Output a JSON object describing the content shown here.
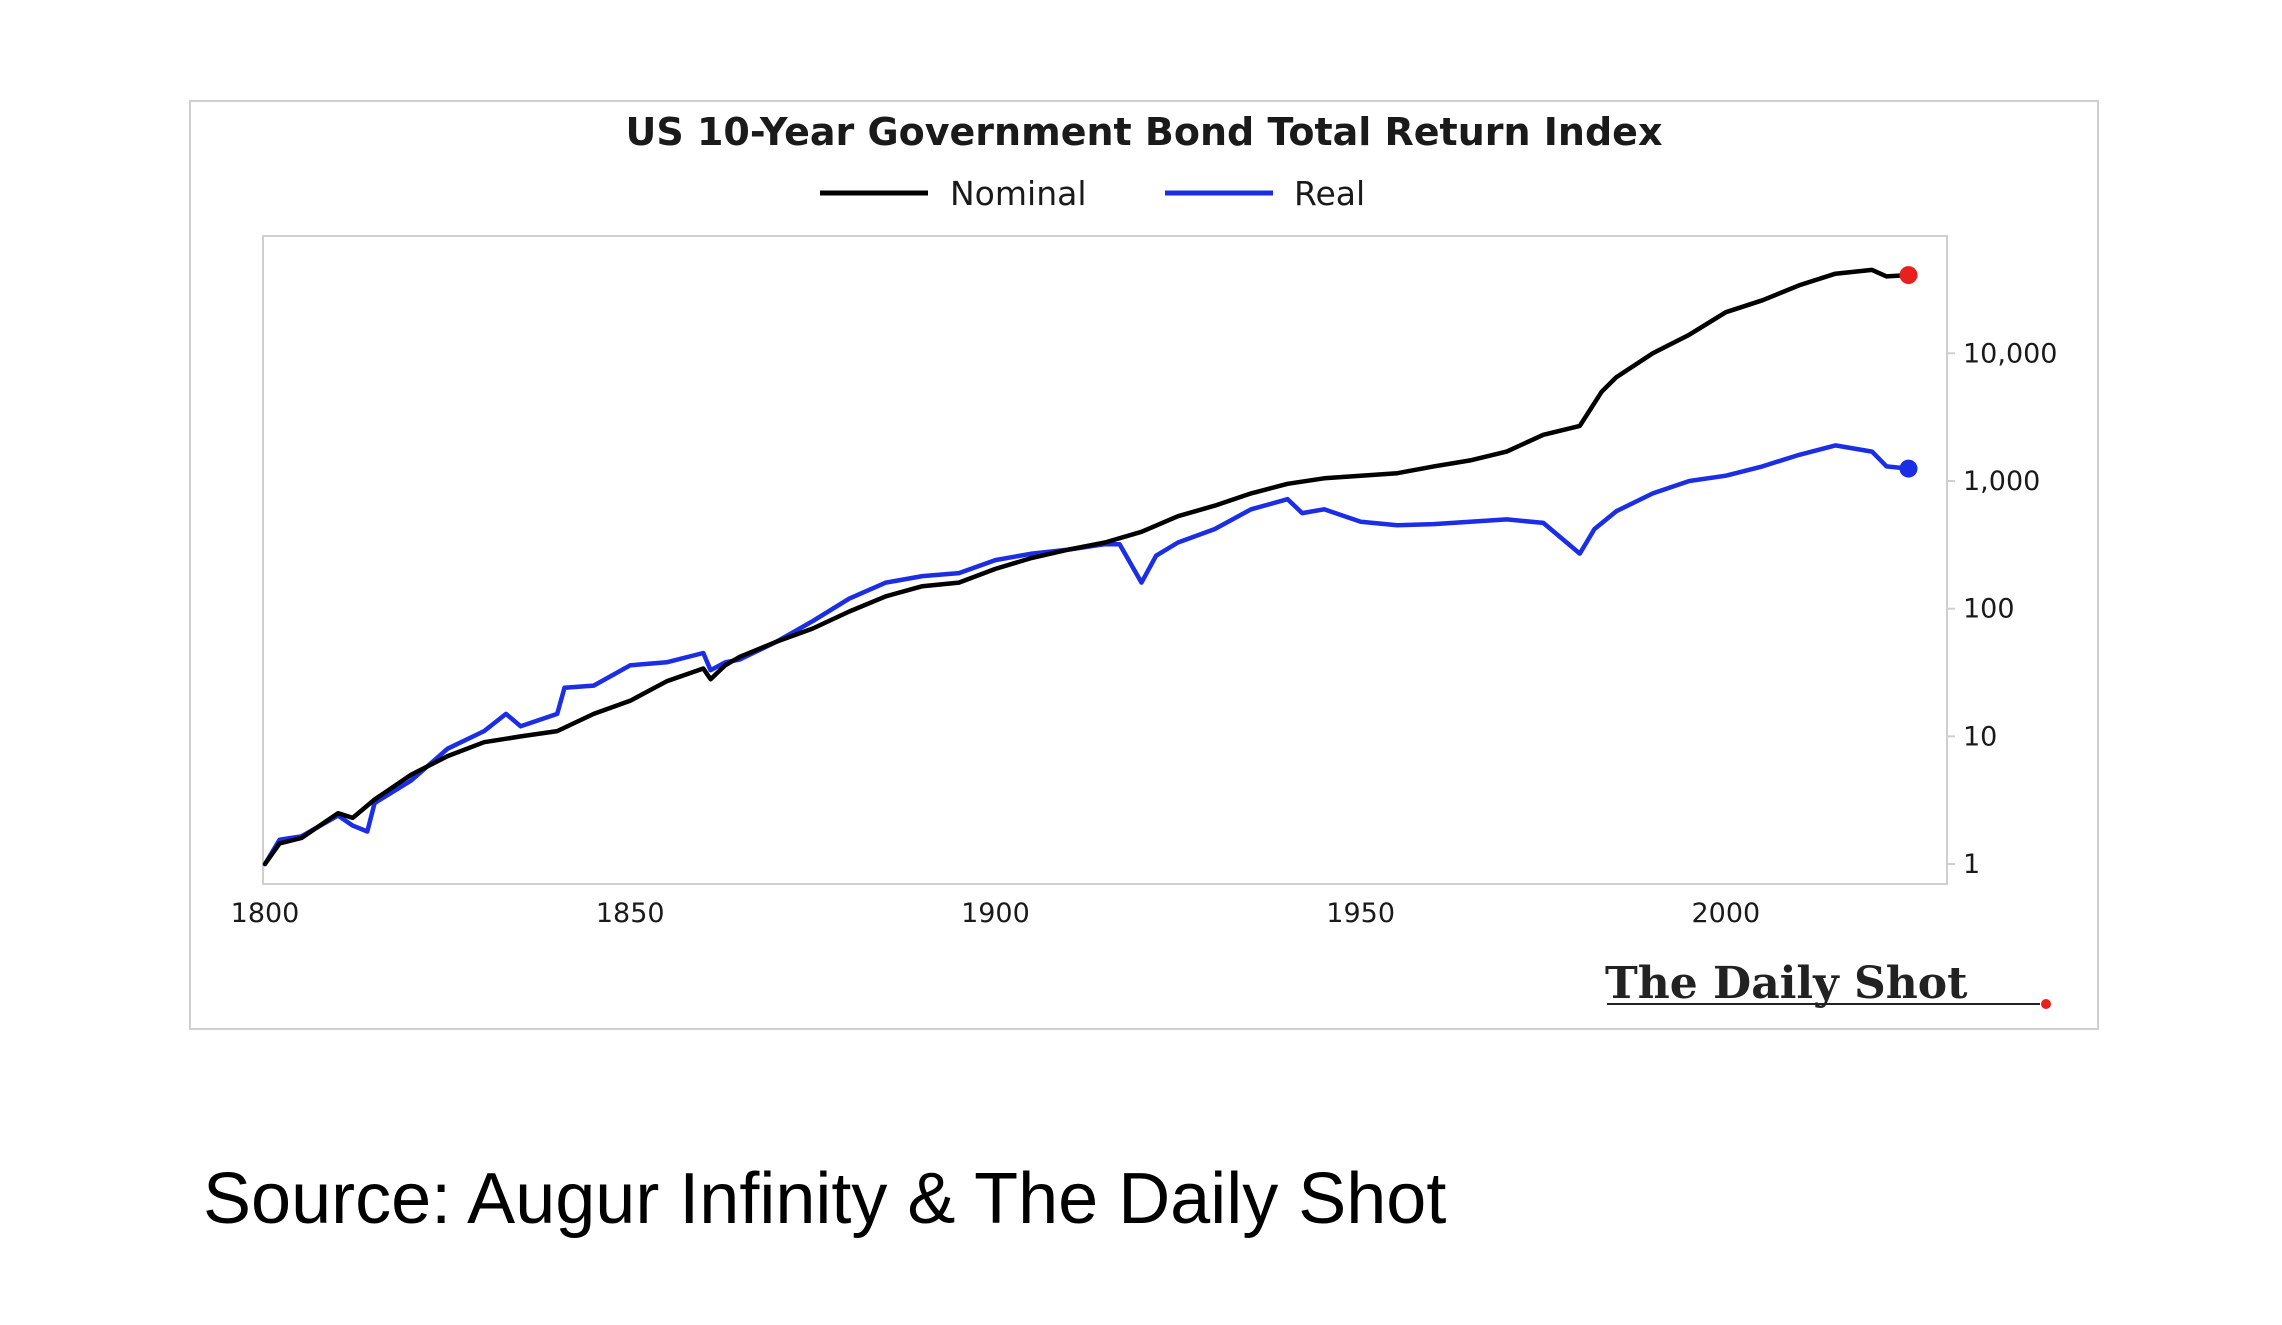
{
  "chart_data": {
    "type": "line",
    "title": "US 10-Year Government Bond Total Return Index",
    "y_scale": "log",
    "ylim": [
      0.75,
      80000
    ],
    "xlim": [
      1800,
      2030
    ],
    "x_ticks": [
      1800,
      1850,
      1900,
      1950,
      2000
    ],
    "x_tick_labels": [
      "1800",
      "1850",
      "1900",
      "1950",
      "2000"
    ],
    "y_ticks": [
      1,
      10,
      100,
      1000,
      10000
    ],
    "y_tick_labels": [
      "1",
      "10",
      "100",
      "1,000",
      "10,000"
    ],
    "y_axis_side": "right",
    "grid": false,
    "legend_position": "top-center",
    "series": [
      {
        "name": "Nominal",
        "color": "#000000",
        "end_marker_color": "#e8201e",
        "x": [
          1800,
          1802,
          1805,
          1810,
          1812,
          1815,
          1820,
          1825,
          1830,
          1835,
          1840,
          1845,
          1850,
          1855,
          1860,
          1861,
          1863,
          1865,
          1870,
          1875,
          1880,
          1885,
          1890,
          1895,
          1900,
          1905,
          1910,
          1915,
          1920,
          1925,
          1930,
          1935,
          1940,
          1945,
          1950,
          1955,
          1960,
          1965,
          1970,
          1975,
          1980,
          1983,
          1985,
          1990,
          1995,
          2000,
          2005,
          2010,
          2015,
          2020,
          2022,
          2025
        ],
        "y": [
          1.0,
          1.45,
          1.6,
          2.5,
          2.3,
          3.2,
          5.0,
          7.0,
          9.0,
          10.0,
          11.0,
          15.0,
          19.0,
          27.0,
          34.0,
          28.0,
          36.0,
          42.0,
          55.0,
          70.0,
          95.0,
          125.0,
          150.0,
          160.0,
          205.0,
          250.0,
          290.0,
          330.0,
          400.0,
          530.0,
          640.0,
          800.0,
          950.0,
          1050.0,
          1100.0,
          1150.0,
          1300.0,
          1450.0,
          1700.0,
          2300.0,
          2700.0,
          5000.0,
          6500.0,
          10000.0,
          14000.0,
          21000.0,
          26000.0,
          34000.0,
          42000.0,
          45000.0,
          40000.0,
          41000.0
        ]
      },
      {
        "name": "Real",
        "color": "#1b2ee6",
        "end_marker_color": "#1b2ee6",
        "x": [
          1800,
          1802,
          1805,
          1810,
          1812,
          1814,
          1815,
          1820,
          1825,
          1830,
          1833,
          1835,
          1840,
          1841,
          1845,
          1850,
          1855,
          1860,
          1861,
          1863,
          1865,
          1870,
          1875,
          1880,
          1885,
          1890,
          1895,
          1900,
          1905,
          1910,
          1915,
          1917,
          1920,
          1922,
          1925,
          1930,
          1935,
          1940,
          1942,
          1945,
          1950,
          1955,
          1960,
          1965,
          1970,
          1975,
          1980,
          1982,
          1985,
          1990,
          1995,
          2000,
          2005,
          2010,
          2015,
          2020,
          2022,
          2025
        ],
        "y": [
          1.0,
          1.55,
          1.65,
          2.4,
          2.0,
          1.8,
          3.0,
          4.5,
          8.0,
          11.0,
          15.0,
          12.0,
          15.0,
          24.0,
          25.0,
          36.0,
          38.0,
          45.0,
          33.0,
          38.0,
          40.0,
          55.0,
          80.0,
          120.0,
          160.0,
          180.0,
          190.0,
          240.0,
          270.0,
          290.0,
          320.0,
          320.0,
          160.0,
          260.0,
          330.0,
          420.0,
          600.0,
          720.0,
          560.0,
          600.0,
          480.0,
          450.0,
          460.0,
          480.0,
          500.0,
          470.0,
          270.0,
          420.0,
          580.0,
          800.0,
          1000.0,
          1100.0,
          1300.0,
          1600.0,
          1900.0,
          1700.0,
          1300.0,
          1250.0
        ]
      }
    ],
    "logo_text": "The Daily Shot"
  },
  "caption": "Source: Augur Infinity & The Daily Shot"
}
